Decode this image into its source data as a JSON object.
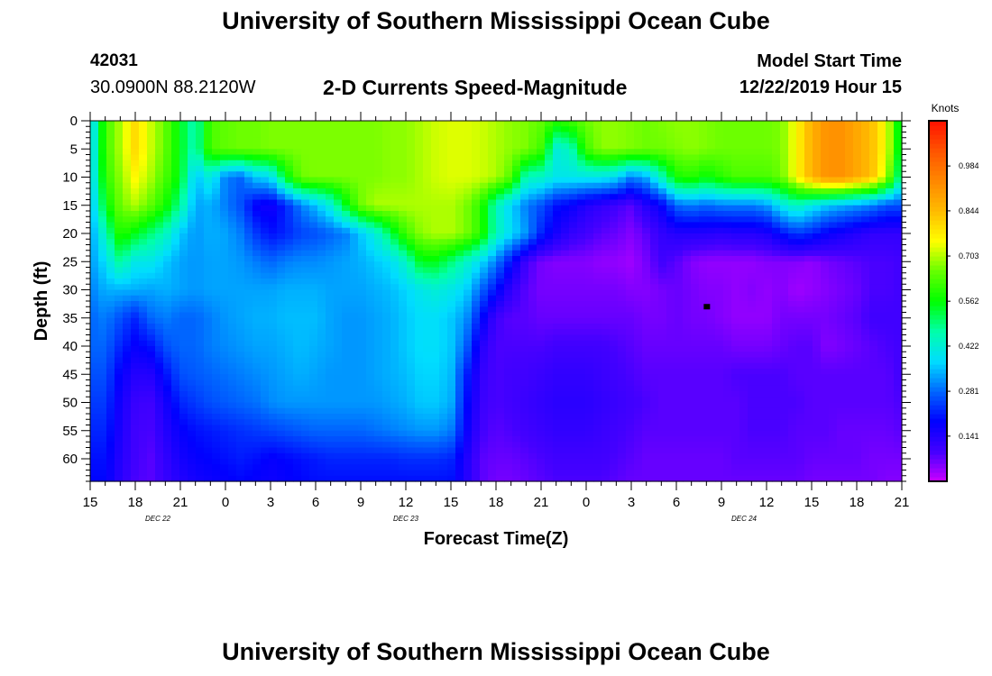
{
  "header": {
    "title": "University of Southern Mississippi Ocean Cube",
    "station_id": "42031",
    "station_location": "30.0900N 88.2120W",
    "chart_title": "2-D Currents Speed-Magnitude",
    "start_time_label": "Model Start Time",
    "start_time_value": "12/22/2019 Hour 15"
  },
  "footer": {
    "title": "University of Southern Mississippi Ocean Cube"
  },
  "chart_data": {
    "type": "heatmap",
    "title": "2-D Currents Speed-Magnitude",
    "xlabel": "Forecast Time(Z)",
    "ylabel": "Depth (ft)",
    "xlim": [
      0,
      54
    ],
    "ylim": [
      0,
      64
    ],
    "y_inverted": true,
    "x_tick_values": [
      0,
      3,
      6,
      9,
      12,
      15,
      18,
      21,
      24,
      27,
      30,
      33,
      36,
      39,
      42,
      45,
      48,
      51,
      54
    ],
    "x_tick_labels": [
      "15",
      "18",
      "21",
      "0",
      "3",
      "6",
      "9",
      "12",
      "15",
      "18",
      "21",
      "0",
      "3",
      "6",
      "9",
      "12",
      "15",
      "18",
      "21"
    ],
    "y_tick_values": [
      0,
      5,
      10,
      15,
      20,
      25,
      30,
      35,
      40,
      45,
      50,
      55,
      60
    ],
    "y_tick_labels": [
      "0",
      "5",
      "10",
      "15",
      "20",
      "25",
      "30",
      "35",
      "40",
      "45",
      "50",
      "55",
      "60"
    ],
    "date_labels": [
      {
        "text": "DEC 22",
        "x": 4.5
      },
      {
        "text": "DEC 23",
        "x": 21
      },
      {
        "text": "DEC 24",
        "x": 43.5
      }
    ],
    "colorbar": {
      "title": "Knots",
      "vmin": 0.0,
      "vmax": 1.125,
      "tick_values": [
        0.141,
        0.281,
        0.422,
        0.562,
        0.703,
        0.844,
        0.984
      ],
      "tick_labels": [
        "0.141",
        "0.281",
        "0.422",
        "0.562",
        "0.703",
        "0.844",
        "0.984"
      ],
      "colormap": [
        "#cc00ff",
        "#4400ff",
        "#0000ff",
        "#0066ff",
        "#00ddff",
        "#00ffaa",
        "#00ff00",
        "#66ff00",
        "#ffff00",
        "#ffbb00",
        "#ff8800",
        "#ff5500",
        "#ff1100"
      ]
    },
    "speed_grid": {
      "time_hours": [
        0,
        1,
        2,
        3,
        4,
        5,
        6,
        7,
        8,
        9,
        10,
        11,
        12,
        13,
        14,
        15,
        16,
        17,
        18,
        19,
        20,
        21,
        22,
        23,
        24,
        25,
        26,
        27,
        28,
        29,
        30,
        31,
        32,
        33,
        34,
        35,
        36,
        37,
        38,
        39,
        40,
        41,
        42,
        43,
        44,
        45,
        46,
        47,
        48,
        49,
        50,
        51,
        52,
        53,
        54
      ],
      "depth_ft": [
        0,
        5,
        10,
        15,
        20,
        25,
        30,
        35,
        40,
        45,
        50,
        55,
        60,
        64
      ],
      "values_knots": [
        [
          0.35,
          0.62,
          0.7,
          0.8,
          0.72,
          0.65,
          0.55,
          0.45,
          0.63,
          0.65,
          0.66,
          0.66,
          0.67,
          0.67,
          0.67,
          0.67,
          0.67,
          0.67,
          0.67,
          0.67,
          0.68,
          0.68,
          0.7,
          0.72,
          0.73,
          0.73,
          0.72,
          0.7,
          0.68,
          0.67,
          0.65,
          0.6,
          0.62,
          0.66,
          0.68,
          0.68,
          0.67,
          0.66,
          0.67,
          0.68,
          0.68,
          0.67,
          0.66,
          0.66,
          0.66,
          0.66,
          0.67,
          0.76,
          0.86,
          0.92,
          0.92,
          0.88,
          0.84,
          0.74,
          0.5
        ],
        [
          0.35,
          0.62,
          0.7,
          0.8,
          0.72,
          0.65,
          0.55,
          0.45,
          0.63,
          0.65,
          0.66,
          0.66,
          0.67,
          0.67,
          0.67,
          0.67,
          0.67,
          0.67,
          0.67,
          0.67,
          0.68,
          0.68,
          0.7,
          0.72,
          0.73,
          0.73,
          0.72,
          0.7,
          0.68,
          0.67,
          0.62,
          0.42,
          0.45,
          0.62,
          0.68,
          0.68,
          0.67,
          0.66,
          0.66,
          0.67,
          0.68,
          0.67,
          0.66,
          0.66,
          0.66,
          0.66,
          0.67,
          0.76,
          0.86,
          0.92,
          0.92,
          0.88,
          0.84,
          0.74,
          0.5
        ],
        [
          0.35,
          0.6,
          0.68,
          0.76,
          0.7,
          0.63,
          0.55,
          0.35,
          0.42,
          0.3,
          0.28,
          0.36,
          0.38,
          0.55,
          0.66,
          0.67,
          0.67,
          0.67,
          0.67,
          0.67,
          0.68,
          0.68,
          0.7,
          0.72,
          0.73,
          0.73,
          0.72,
          0.7,
          0.64,
          0.45,
          0.44,
          0.4,
          0.4,
          0.4,
          0.4,
          0.38,
          0.3,
          0.34,
          0.45,
          0.58,
          0.6,
          0.56,
          0.6,
          0.63,
          0.63,
          0.63,
          0.66,
          0.76,
          0.86,
          0.92,
          0.92,
          0.88,
          0.84,
          0.7,
          0.45
        ],
        [
          0.33,
          0.55,
          0.66,
          0.7,
          0.65,
          0.58,
          0.48,
          0.33,
          0.34,
          0.3,
          0.26,
          0.18,
          0.16,
          0.22,
          0.3,
          0.35,
          0.42,
          0.55,
          0.66,
          0.7,
          0.7,
          0.7,
          0.7,
          0.7,
          0.7,
          0.67,
          0.6,
          0.45,
          0.37,
          0.3,
          0.26,
          0.2,
          0.18,
          0.14,
          0.12,
          0.1,
          0.08,
          0.14,
          0.18,
          0.28,
          0.3,
          0.28,
          0.3,
          0.3,
          0.3,
          0.32,
          0.4,
          0.45,
          0.4,
          0.36,
          0.34,
          0.32,
          0.3,
          0.26,
          0.26
        ],
        [
          0.32,
          0.45,
          0.6,
          0.55,
          0.5,
          0.45,
          0.36,
          0.32,
          0.34,
          0.33,
          0.3,
          0.24,
          0.2,
          0.22,
          0.25,
          0.26,
          0.28,
          0.3,
          0.36,
          0.42,
          0.52,
          0.62,
          0.68,
          0.7,
          0.7,
          0.67,
          0.6,
          0.45,
          0.38,
          0.32,
          0.22,
          0.16,
          0.12,
          0.1,
          0.08,
          0.07,
          0.05,
          0.08,
          0.12,
          0.14,
          0.14,
          0.14,
          0.13,
          0.14,
          0.14,
          0.15,
          0.2,
          0.24,
          0.22,
          0.18,
          0.16,
          0.14,
          0.12,
          0.12,
          0.12
        ],
        [
          0.32,
          0.38,
          0.48,
          0.4,
          0.4,
          0.36,
          0.33,
          0.32,
          0.33,
          0.33,
          0.32,
          0.3,
          0.28,
          0.3,
          0.31,
          0.31,
          0.32,
          0.33,
          0.34,
          0.36,
          0.38,
          0.44,
          0.55,
          0.55,
          0.5,
          0.44,
          0.38,
          0.3,
          0.2,
          0.1,
          0.06,
          0.05,
          0.05,
          0.05,
          0.04,
          0.04,
          0.03,
          0.06,
          0.1,
          0.08,
          0.05,
          0.04,
          0.04,
          0.04,
          0.04,
          0.05,
          0.05,
          0.05,
          0.04,
          0.06,
          0.07,
          0.08,
          0.09,
          0.09,
          0.1
        ],
        [
          0.3,
          0.34,
          0.34,
          0.34,
          0.33,
          0.34,
          0.33,
          0.32,
          0.33,
          0.33,
          0.33,
          0.33,
          0.33,
          0.34,
          0.34,
          0.34,
          0.33,
          0.33,
          0.33,
          0.34,
          0.35,
          0.37,
          0.4,
          0.42,
          0.4,
          0.37,
          0.28,
          0.2,
          0.12,
          0.08,
          0.06,
          0.06,
          0.06,
          0.06,
          0.06,
          0.06,
          0.05,
          0.05,
          0.06,
          0.07,
          0.06,
          0.05,
          0.05,
          0.04,
          0.05,
          0.04,
          0.05,
          0.03,
          0.04,
          0.05,
          0.06,
          0.07,
          0.09,
          0.09,
          0.1
        ],
        [
          0.28,
          0.3,
          0.26,
          0.22,
          0.28,
          0.3,
          0.28,
          0.28,
          0.3,
          0.32,
          0.33,
          0.34,
          0.34,
          0.35,
          0.35,
          0.35,
          0.33,
          0.32,
          0.32,
          0.33,
          0.34,
          0.36,
          0.38,
          0.38,
          0.36,
          0.32,
          0.2,
          0.1,
          0.08,
          0.08,
          0.07,
          0.07,
          0.07,
          0.07,
          0.07,
          0.07,
          0.07,
          0.06,
          0.06,
          0.07,
          0.06,
          0.06,
          0.05,
          0.04,
          0.04,
          0.04,
          0.06,
          0.06,
          0.06,
          0.06,
          0.07,
          0.08,
          0.1,
          0.1,
          0.1
        ],
        [
          0.28,
          0.28,
          0.22,
          0.18,
          0.2,
          0.26,
          0.28,
          0.28,
          0.3,
          0.31,
          0.32,
          0.33,
          0.33,
          0.34,
          0.35,
          0.34,
          0.33,
          0.32,
          0.32,
          0.33,
          0.34,
          0.36,
          0.38,
          0.38,
          0.36,
          0.28,
          0.14,
          0.09,
          0.09,
          0.09,
          0.09,
          0.1,
          0.1,
          0.1,
          0.1,
          0.09,
          0.08,
          0.07,
          0.07,
          0.07,
          0.07,
          0.07,
          0.07,
          0.06,
          0.06,
          0.06,
          0.07,
          0.08,
          0.08,
          0.05,
          0.06,
          0.07,
          0.08,
          0.09,
          0.1
        ],
        [
          0.26,
          0.26,
          0.18,
          0.14,
          0.14,
          0.2,
          0.26,
          0.27,
          0.28,
          0.29,
          0.3,
          0.31,
          0.32,
          0.33,
          0.34,
          0.33,
          0.32,
          0.32,
          0.32,
          0.33,
          0.34,
          0.35,
          0.37,
          0.37,
          0.35,
          0.22,
          0.12,
          0.09,
          0.1,
          0.1,
          0.11,
          0.12,
          0.12,
          0.12,
          0.11,
          0.1,
          0.09,
          0.08,
          0.08,
          0.08,
          0.08,
          0.08,
          0.08,
          0.09,
          0.09,
          0.09,
          0.09,
          0.08,
          0.08,
          0.08,
          0.08,
          0.08,
          0.08,
          0.08,
          0.1
        ],
        [
          0.24,
          0.24,
          0.16,
          0.11,
          0.1,
          0.16,
          0.22,
          0.24,
          0.26,
          0.27,
          0.28,
          0.29,
          0.31,
          0.32,
          0.32,
          0.32,
          0.32,
          0.32,
          0.32,
          0.32,
          0.33,
          0.34,
          0.36,
          0.36,
          0.34,
          0.2,
          0.11,
          0.09,
          0.1,
          0.11,
          0.12,
          0.13,
          0.13,
          0.13,
          0.12,
          0.11,
          0.1,
          0.09,
          0.08,
          0.08,
          0.08,
          0.08,
          0.08,
          0.08,
          0.09,
          0.09,
          0.09,
          0.09,
          0.08,
          0.08,
          0.08,
          0.08,
          0.08,
          0.08,
          0.09
        ],
        [
          0.22,
          0.22,
          0.15,
          0.1,
          0.09,
          0.14,
          0.18,
          0.2,
          0.21,
          0.22,
          0.23,
          0.24,
          0.25,
          0.26,
          0.27,
          0.28,
          0.28,
          0.28,
          0.28,
          0.29,
          0.3,
          0.31,
          0.32,
          0.32,
          0.3,
          0.18,
          0.1,
          0.08,
          0.09,
          0.1,
          0.11,
          0.12,
          0.12,
          0.12,
          0.11,
          0.1,
          0.09,
          0.08,
          0.08,
          0.08,
          0.08,
          0.08,
          0.08,
          0.08,
          0.09,
          0.09,
          0.09,
          0.08,
          0.08,
          0.08,
          0.07,
          0.07,
          0.07,
          0.07,
          0.08
        ],
        [
          0.2,
          0.2,
          0.14,
          0.1,
          0.08,
          0.12,
          0.16,
          0.18,
          0.19,
          0.2,
          0.21,
          0.2,
          0.18,
          0.19,
          0.2,
          0.21,
          0.22,
          0.22,
          0.22,
          0.22,
          0.22,
          0.23,
          0.23,
          0.23,
          0.22,
          0.15,
          0.08,
          0.07,
          0.07,
          0.08,
          0.09,
          0.1,
          0.1,
          0.1,
          0.1,
          0.09,
          0.08,
          0.07,
          0.07,
          0.07,
          0.07,
          0.07,
          0.07,
          0.08,
          0.08,
          0.08,
          0.08,
          0.08,
          0.07,
          0.07,
          0.07,
          0.07,
          0.06,
          0.06,
          0.06
        ],
        [
          0.19,
          0.19,
          0.13,
          0.09,
          0.08,
          0.11,
          0.14,
          0.16,
          0.17,
          0.18,
          0.19,
          0.18,
          0.17,
          0.18,
          0.19,
          0.2,
          0.2,
          0.2,
          0.2,
          0.2,
          0.2,
          0.2,
          0.2,
          0.2,
          0.2,
          0.14,
          0.08,
          0.06,
          0.06,
          0.07,
          0.08,
          0.09,
          0.09,
          0.09,
          0.09,
          0.08,
          0.07,
          0.07,
          0.07,
          0.07,
          0.07,
          0.07,
          0.07,
          0.07,
          0.07,
          0.07,
          0.07,
          0.07,
          0.06,
          0.06,
          0.06,
          0.06,
          0.06,
          0.05,
          0.05
        ]
      ]
    },
    "marker": {
      "x": 41,
      "y": 33
    }
  }
}
